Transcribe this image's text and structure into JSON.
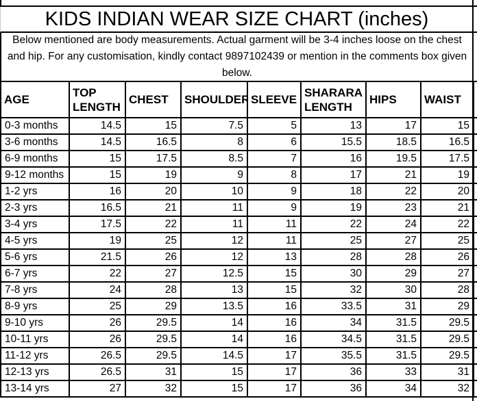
{
  "title": "KIDS INDIAN WEAR SIZE CHART (inches)",
  "note": "Below mentioned are body measurements. Actual garment will be 3-4 inches loose on the chest and hip. For any customisation, kindly contact 9897102439 or mention in the comments box given below.",
  "colors": {
    "border": "#000000",
    "background": "#ffffff",
    "text": "#000000"
  },
  "chart_data": {
    "type": "table",
    "title": "KIDS INDIAN WEAR SIZE CHART (inches)",
    "unit": "inches",
    "columns": [
      "AGE",
      "TOP LENGTH",
      "CHEST",
      "SHOULDER",
      "SLEEVE",
      "SHARARA LENGTH",
      "HIPS",
      "WAIST"
    ],
    "rows": [
      [
        "0-3 months",
        14.5,
        15,
        7.5,
        5,
        13,
        17,
        15
      ],
      [
        "3-6 months",
        14.5,
        16.5,
        8,
        6,
        15.5,
        18.5,
        16.5
      ],
      [
        "6-9 months",
        15,
        17.5,
        8.5,
        7,
        16,
        19.5,
        17.5
      ],
      [
        "9-12 months",
        15,
        19,
        9,
        8,
        17,
        21,
        19
      ],
      [
        "1-2 yrs",
        16,
        20,
        10,
        9,
        18,
        22,
        20
      ],
      [
        "2-3 yrs",
        16.5,
        21,
        11,
        9,
        19,
        23,
        21
      ],
      [
        "3-4 yrs",
        17.5,
        22,
        11,
        11,
        22,
        24,
        22
      ],
      [
        "4-5 yrs",
        19,
        25,
        12,
        11,
        25,
        27,
        25
      ],
      [
        "5-6 yrs",
        21.5,
        26,
        12,
        13,
        28,
        28,
        26
      ],
      [
        "6-7 yrs",
        22,
        27,
        12.5,
        15,
        30,
        29,
        27
      ],
      [
        "7-8 yrs",
        24,
        28,
        13,
        15,
        32,
        30,
        28
      ],
      [
        "8-9 yrs",
        25,
        29,
        13.5,
        16,
        33.5,
        31,
        29
      ],
      [
        "9-10 yrs",
        26,
        29.5,
        14,
        16,
        34,
        31.5,
        29.5
      ],
      [
        "10-11 yrs",
        26,
        29.5,
        14,
        16,
        34.5,
        31.5,
        29.5
      ],
      [
        "11-12 yrs",
        26.5,
        29.5,
        14.5,
        17,
        35.5,
        31.5,
        29.5
      ],
      [
        "12-13 yrs",
        26.5,
        31,
        15,
        17,
        36,
        33,
        31
      ],
      [
        "13-14 yrs",
        27,
        32,
        15,
        17,
        36,
        34,
        32
      ]
    ]
  }
}
